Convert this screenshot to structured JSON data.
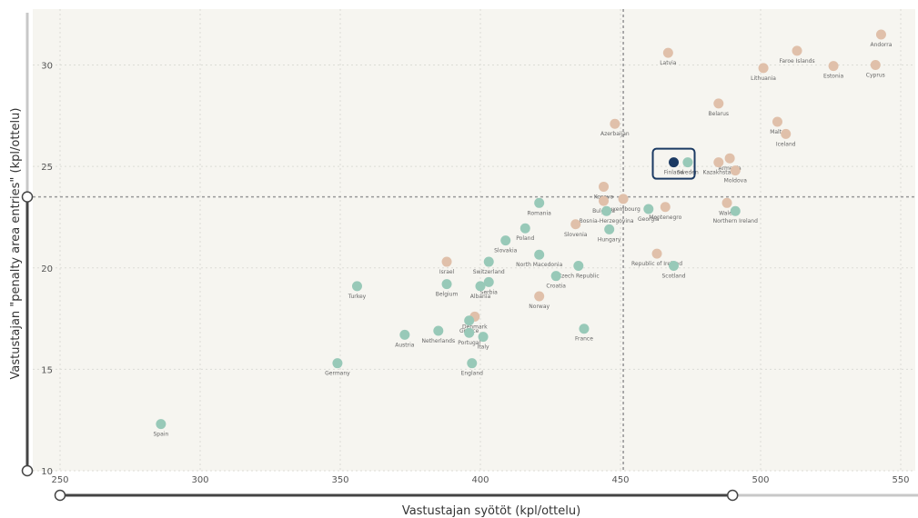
{
  "colors": {
    "plot_bg": "#f6f5f0",
    "qualified": "#e0c0aa",
    "not_qualified": "#98c9b8",
    "highlight": "#1b3a63",
    "reference_line": "#999999",
    "slider": "#444444",
    "slider_track_light": "#c8c8c8"
  },
  "chart_data": {
    "type": "scatter",
    "title": "",
    "xlabel": "Vastustajan syötöt (kpl/ottelu)",
    "ylabel": "Vastustajan \"penalty area entries\" (kpl/ottelu)",
    "xlim": [
      250,
      555
    ],
    "ylim": [
      10,
      32.6
    ],
    "x_ticks": [
      250,
      300,
      350,
      400,
      450,
      500,
      550
    ],
    "y_ticks": [
      10,
      15,
      20,
      25,
      30
    ],
    "grid": true,
    "reference_lines": {
      "x": 451,
      "y": 23.5
    },
    "highlighted": "Finland",
    "x_slider": {
      "from": 250,
      "to": 490
    },
    "y_slider": {
      "from": 10,
      "to": 23.5
    },
    "points": [
      {
        "label": "Andorra",
        "x": 543,
        "y": 31.5,
        "group": "qualified"
      },
      {
        "label": "Faroe Islands",
        "x": 513,
        "y": 30.7,
        "group": "qualified"
      },
      {
        "label": "Latvia",
        "x": 467,
        "y": 30.6,
        "group": "qualified"
      },
      {
        "label": "Cyprus",
        "x": 541,
        "y": 30.0,
        "group": "qualified"
      },
      {
        "label": "Estonia",
        "x": 526,
        "y": 29.95,
        "group": "qualified"
      },
      {
        "label": "Lithuania",
        "x": 501,
        "y": 29.85,
        "group": "qualified"
      },
      {
        "label": "Belarus",
        "x": 485,
        "y": 28.1,
        "group": "qualified"
      },
      {
        "label": "Malta",
        "x": 506,
        "y": 27.2,
        "group": "qualified"
      },
      {
        "label": "Iceland",
        "x": 509,
        "y": 26.6,
        "group": "qualified"
      },
      {
        "label": "Azerbaijan",
        "x": 448,
        "y": 27.1,
        "group": "qualified"
      },
      {
        "label": "Finland",
        "x": 469,
        "y": 25.2,
        "group": "highlight"
      },
      {
        "label": "Sweden",
        "x": 474,
        "y": 25.2,
        "group": "not_qualified"
      },
      {
        "label": "Kazakhstan",
        "x": 485,
        "y": 25.2,
        "group": "qualified"
      },
      {
        "label": "Armenia",
        "x": 489,
        "y": 25.4,
        "group": "qualified"
      },
      {
        "label": "Moldova",
        "x": 491,
        "y": 24.8,
        "group": "qualified"
      },
      {
        "label": "Kosovo",
        "x": 444,
        "y": 24.0,
        "group": "qualified"
      },
      {
        "label": "Bulgaria",
        "x": 444,
        "y": 23.3,
        "group": "qualified"
      },
      {
        "label": "Israel",
        "x": 388,
        "y": 20.3,
        "group": "qualified"
      },
      {
        "label": "Luxembourg",
        "x": 451,
        "y": 23.4,
        "group": "qualified"
      },
      {
        "label": "Montenegro",
        "x": 466,
        "y": 23.0,
        "group": "qualified"
      },
      {
        "label": "Georgia",
        "x": 460,
        "y": 22.9,
        "group": "not_qualified"
      },
      {
        "label": "Bosnia-Herzegovina",
        "x": 445,
        "y": 22.8,
        "group": "not_qualified"
      },
      {
        "label": "Wales",
        "x": 488,
        "y": 23.2,
        "group": "qualified"
      },
      {
        "label": "Northern Ireland",
        "x": 491,
        "y": 22.8,
        "group": "not_qualified"
      },
      {
        "label": "Romania",
        "x": 421,
        "y": 23.2,
        "group": "not_qualified"
      },
      {
        "label": "Slovenia",
        "x": 434,
        "y": 22.15,
        "group": "qualified"
      },
      {
        "label": "Hungary",
        "x": 446,
        "y": 21.9,
        "group": "not_qualified"
      },
      {
        "label": "Poland",
        "x": 416,
        "y": 21.95,
        "group": "not_qualified"
      },
      {
        "label": "Slovakia",
        "x": 409,
        "y": 21.35,
        "group": "not_qualified"
      },
      {
        "label": "North Macedonia",
        "x": 421,
        "y": 20.65,
        "group": "not_qualified"
      },
      {
        "label": "Republic of Ireland",
        "x": 463,
        "y": 20.7,
        "group": "qualified"
      },
      {
        "label": "Scotland",
        "x": 469,
        "y": 20.1,
        "group": "not_qualified"
      },
      {
        "label": "Switzerland",
        "x": 403,
        "y": 20.3,
        "group": "not_qualified"
      },
      {
        "label": "Serbia",
        "x": 403,
        "y": 19.3,
        "group": "not_qualified"
      },
      {
        "label": "Czech Republic",
        "x": 435,
        "y": 20.1,
        "group": "not_qualified"
      },
      {
        "label": "Croatia",
        "x": 427,
        "y": 19.6,
        "group": "not_qualified"
      },
      {
        "label": "Belgium",
        "x": 388,
        "y": 19.2,
        "group": "not_qualified"
      },
      {
        "label": "Albania",
        "x": 400,
        "y": 19.1,
        "group": "not_qualified"
      },
      {
        "label": "Norway",
        "x": 421,
        "y": 18.6,
        "group": "qualified"
      },
      {
        "label": "Turkey",
        "x": 356,
        "y": 19.1,
        "group": "not_qualified"
      },
      {
        "label": "Denmark",
        "x": 398,
        "y": 17.6,
        "group": "qualified"
      },
      {
        "label": "Greece",
        "x": 396,
        "y": 17.4,
        "group": "not_qualified"
      },
      {
        "label": "Portugal",
        "x": 396,
        "y": 16.8,
        "group": "not_qualified"
      },
      {
        "label": "Netherlands",
        "x": 385,
        "y": 16.9,
        "group": "not_qualified"
      },
      {
        "label": "Italy",
        "x": 401,
        "y": 16.6,
        "group": "not_qualified"
      },
      {
        "label": "Austria",
        "x": 373,
        "y": 16.7,
        "group": "not_qualified"
      },
      {
        "label": "France",
        "x": 437,
        "y": 17.0,
        "group": "not_qualified"
      },
      {
        "label": "Germany",
        "x": 349,
        "y": 15.3,
        "group": "not_qualified"
      },
      {
        "label": "England",
        "x": 397,
        "y": 15.3,
        "group": "not_qualified"
      },
      {
        "label": "Spain",
        "x": 286,
        "y": 12.3,
        "group": "not_qualified"
      }
    ]
  }
}
